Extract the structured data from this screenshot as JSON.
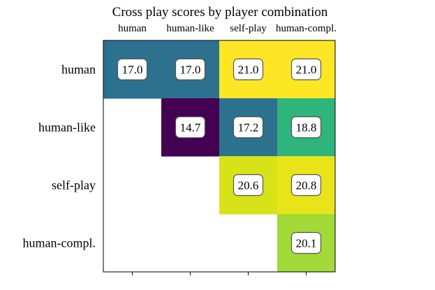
{
  "chart_data": {
    "type": "heatmap",
    "title": "Cross play scores by player combination",
    "x_categories": [
      "human",
      "human-like",
      "self-play",
      "human-compl."
    ],
    "y_categories": [
      "human",
      "human-like",
      "self-play",
      "human-compl."
    ],
    "x_axis_position": "top",
    "values": [
      [
        17.0,
        17.0,
        21.0,
        21.0
      ],
      [
        null,
        14.7,
        17.2,
        18.8
      ],
      [
        null,
        null,
        20.6,
        20.8
      ],
      [
        null,
        null,
        null,
        20.1
      ]
    ],
    "value_labels": [
      [
        "17.0",
        "17.0",
        "21.0",
        "21.0"
      ],
      [
        null,
        "14.7",
        "17.2",
        "18.8"
      ],
      [
        null,
        null,
        "20.6",
        "20.8"
      ],
      [
        null,
        null,
        null,
        "20.1"
      ]
    ],
    "colormap": "viridis",
    "color_range": [
      14.7,
      21.0
    ],
    "colors": {
      "17.0": "#2c718e",
      "21.0": "#fde725",
      "14.7": "#440154",
      "17.2": "#2c728e",
      "18.8": "#2fb47c",
      "20.6": "#d8e219",
      "20.8": "#e8e419",
      "20.1": "#a2da37"
    },
    "grid": false,
    "legend": "none"
  }
}
